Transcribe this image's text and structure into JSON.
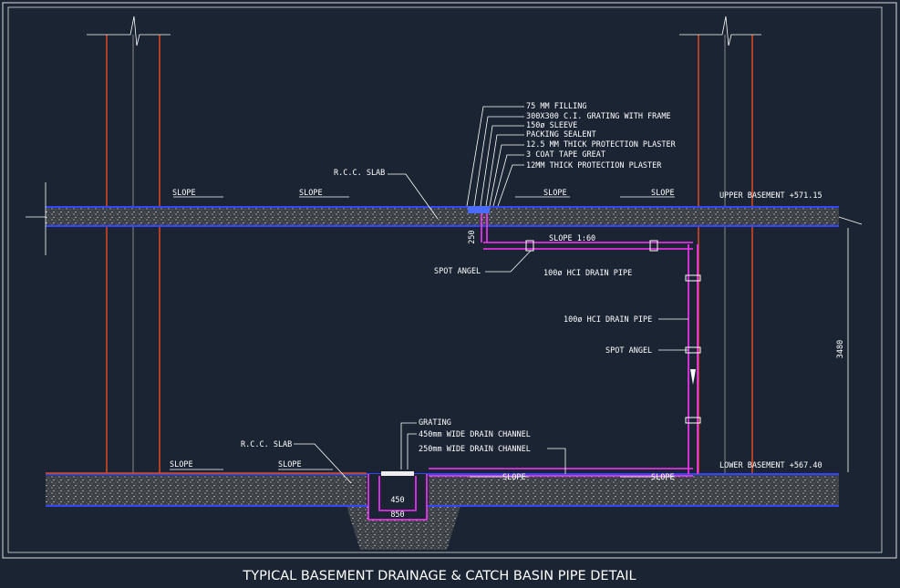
{
  "title": "TYPICAL BASEMENT DRAINAGE & CATCH BASIN PIPE DETAIL",
  "callouts": [
    "75 MM FILLING",
    "300X300 C.I. GRATING WITH FRAME",
    "150ø SLEEVE",
    "PACKING SEALENT",
    "12.5 MM THICK PROTECTION PLASTER",
    "3 COAT TAPE GREAT",
    "12MM THICK PROTECTION PLASTER"
  ],
  "upper": {
    "slab": "R.C.C. SLAB",
    "slopes": [
      "SLOPE",
      "SLOPE",
      "SLOPE",
      "SLOPE"
    ],
    "pipe_slope": "SLOPE 1:60",
    "level": "UPPER BASEMENT +571.15",
    "drop": "250",
    "spot": "SPOT ANGEL",
    "pipe": "100ø HCI DRAIN PIPE"
  },
  "riser": {
    "pipe": "100ø HCI DRAIN PIPE",
    "spot": "SPOT ANGEL",
    "height": "3480"
  },
  "lower": {
    "slab": "R.C.C. SLAB",
    "slopes": [
      "SLOPE",
      "SLOPE",
      "SLOPE",
      "SLOPE"
    ],
    "level": "LOWER BASEMENT +567.40",
    "grating": "GRATING",
    "channel_450": "450mm WIDE DRAIN CHANNEL",
    "channel_250": "250mm WIDE DRAIN CHANNEL",
    "inner": "450",
    "outer": "850"
  }
}
